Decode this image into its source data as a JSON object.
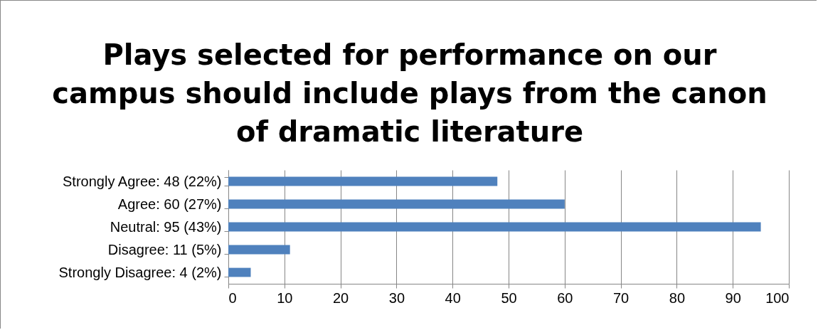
{
  "chart_data": {
    "type": "bar",
    "orientation": "horizontal",
    "title": "Plays selected for performance on our campus should include plays from the canon of dramatic literature",
    "categories": [
      "Strongly Agree: 48 (22%)",
      "Agree: 60 (27%)",
      "Neutral: 95 (43%)",
      "Disagree: 11 (5%)",
      "Strongly Disagree: 4 (2%)"
    ],
    "values": [
      48,
      60,
      95,
      11,
      4
    ],
    "color": "#4f81bd",
    "xlim": [
      0,
      100
    ],
    "xticks": [
      0,
      10,
      20,
      30,
      40,
      50,
      60,
      70,
      80,
      90,
      100
    ],
    "grid": "x"
  }
}
